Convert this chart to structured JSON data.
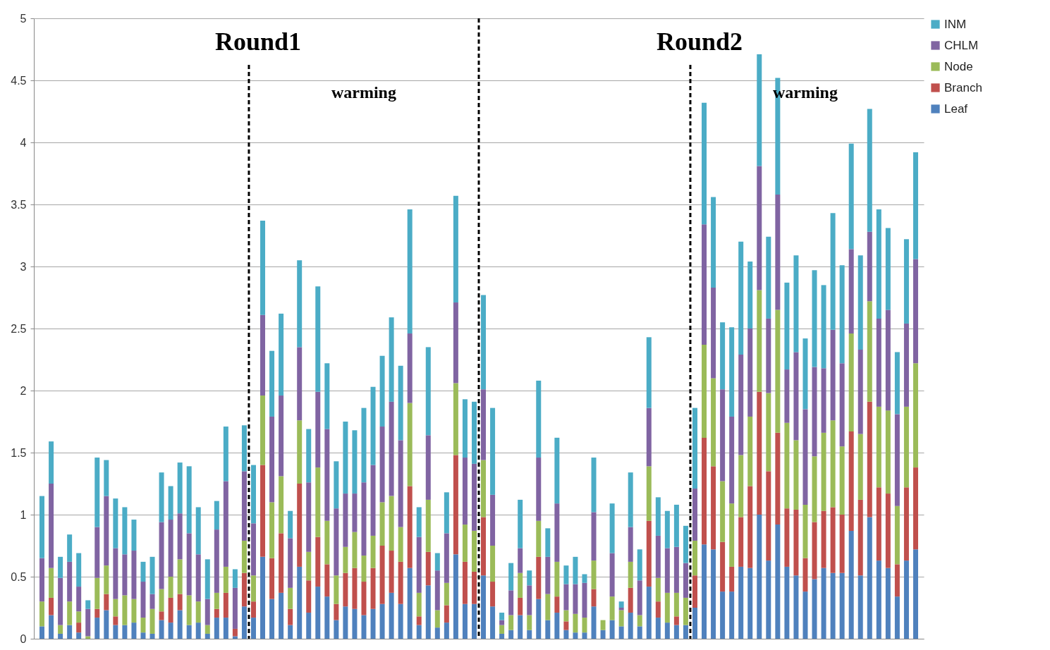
{
  "chart_data": {
    "type": "bar",
    "stacked": true,
    "grid": "y",
    "legend": "right",
    "categories": [
      null,
      null,
      null,
      null,
      null,
      null,
      null,
      null,
      null,
      null,
      null,
      null,
      null,
      null,
      null,
      null,
      null,
      null,
      null,
      null,
      null,
      null,
      null,
      null,
      null,
      null,
      null,
      null,
      null,
      null,
      null,
      null,
      null,
      null,
      null,
      null,
      null,
      null,
      null,
      null,
      null,
      null,
      null,
      null,
      null,
      null,
      null,
      null,
      null,
      null,
      null,
      null,
      null,
      null,
      null,
      null,
      null,
      null,
      null,
      null,
      null,
      null,
      null,
      null,
      null,
      null,
      null,
      null,
      null,
      null,
      null,
      null,
      null,
      null,
      null,
      null,
      null,
      null,
      null,
      null,
      null,
      null,
      null,
      null,
      null,
      null,
      null,
      null,
      null,
      null,
      null,
      null,
      null,
      null,
      null,
      null
    ],
    "ylim": [
      0,
      5
    ],
    "yticks": [
      0,
      0.5,
      1,
      1.5,
      2,
      2.5,
      3,
      3.5,
      4,
      4.5,
      5
    ],
    "series": [
      {
        "name": "Leaf",
        "color": "#4f81bd",
        "values": [
          0.1,
          0.19,
          0.04,
          0.11,
          0.05,
          0,
          0.17,
          0.23,
          0.11,
          0.11,
          0.13,
          0.05,
          0.04,
          0.15,
          0.13,
          0.23,
          0.11,
          0.13,
          0.04,
          0.17,
          0.17,
          0.02,
          0.26,
          0.17,
          0.66,
          0.32,
          0.37,
          0.11,
          0.58,
          0.21,
          0.42,
          0.34,
          0.15,
          0.26,
          0.24,
          0.19,
          0.24,
          0.28,
          0.37,
          0.28,
          0.57,
          0.11,
          0.43,
          0.09,
          0.13,
          0.68,
          0.28,
          0.28,
          0.51,
          0.26,
          0.04,
          0.07,
          0.19,
          0.07,
          0.32,
          0.15,
          0.21,
          0.07,
          0.05,
          0.05,
          0.26,
          0.07,
          0.15,
          0.1,
          0.21,
          0.1,
          0.42,
          0.17,
          0.13,
          0.11,
          0.11,
          0.25,
          0.76,
          0.72,
          0.38,
          0.38,
          0.58,
          0.57,
          1.0,
          0.63,
          0.92,
          0.58,
          0.51,
          0.38,
          0.48,
          0.57,
          0.53,
          0.53,
          0.87,
          0.51,
          0.98,
          0.63,
          0.57,
          0.34,
          0.63,
          0.72
        ]
      },
      {
        "name": "Branch",
        "color": "#c0504d",
        "values": [
          0,
          0.14,
          0,
          0,
          0.08,
          0,
          0.07,
          0.13,
          0.07,
          0,
          0,
          0,
          0,
          0.07,
          0.2,
          0.13,
          0,
          0,
          0,
          0.07,
          0.2,
          0.06,
          0.27,
          0.13,
          0.74,
          0.33,
          0.48,
          0.13,
          0.67,
          0.26,
          0.4,
          0.26,
          0.13,
          0.27,
          0.33,
          0.27,
          0.33,
          0.47,
          0.34,
          0.34,
          0.66,
          0.07,
          0.27,
          0,
          0.14,
          0.8,
          0.34,
          0.26,
          0.47,
          0.2,
          0,
          0,
          0.14,
          0,
          0.34,
          0,
          0.13,
          0.07,
          0,
          0,
          0.14,
          0,
          0,
          0,
          0.2,
          0,
          0.53,
          0.13,
          0,
          0.07,
          0,
          0.26,
          0.86,
          0.67,
          0.4,
          0.2,
          0.4,
          0.66,
          0.99,
          0.72,
          0.74,
          0.47,
          0.53,
          0.27,
          0.46,
          0.46,
          0.53,
          0.47,
          0.8,
          0.61,
          0.93,
          0.59,
          0.6,
          0.26,
          0.59,
          0.66
        ]
      },
      {
        "name": "Node",
        "color": "#9bbb59",
        "values": [
          0.2,
          0.24,
          0.07,
          0.19,
          0.09,
          0.02,
          0.25,
          0.23,
          0.14,
          0.24,
          0.19,
          0.12,
          0.2,
          0.18,
          0.17,
          0.28,
          0.24,
          0.17,
          0.07,
          0.13,
          0.21,
          0,
          0.26,
          0.21,
          0.56,
          0.45,
          0.46,
          0.17,
          0.51,
          0.23,
          0.56,
          0.35,
          0.23,
          0.21,
          0.29,
          0.21,
          0.26,
          0.35,
          0.44,
          0.28,
          0.67,
          0.19,
          0.42,
          0.14,
          0.18,
          0.58,
          0.3,
          0.33,
          0.46,
          0.29,
          0.07,
          0.12,
          0.2,
          0.12,
          0.29,
          0.21,
          0.28,
          0.09,
          0.15,
          0.12,
          0.23,
          0.08,
          0.19,
          0.13,
          0.21,
          0.09,
          0.44,
          0.19,
          0.24,
          0.19,
          0.22,
          0.28,
          0.75,
          0.71,
          0.49,
          0.51,
          0.5,
          0.56,
          0.82,
          0.63,
          0.99,
          0.69,
          0.56,
          0.43,
          0.53,
          0.63,
          0.7,
          0.55,
          0.79,
          0.53,
          0.81,
          0.65,
          0.67,
          0.47,
          0.65,
          0.84
        ]
      },
      {
        "name": "CHLM",
        "color": "#8064a2",
        "values": [
          0.35,
          0.68,
          0.38,
          0.32,
          0.2,
          0.22,
          0.41,
          0.56,
          0.41,
          0.33,
          0.39,
          0.29,
          0.12,
          0.54,
          0.46,
          0.37,
          0.5,
          0.38,
          0.21,
          0.51,
          0.69,
          0.33,
          0.56,
          0.42,
          0.65,
          0.69,
          0.65,
          0.4,
          0.59,
          0.56,
          0.61,
          0.74,
          0.54,
          0.43,
          0.31,
          0.59,
          0.57,
          0.61,
          0.76,
          0.7,
          0.56,
          0.45,
          0.52,
          0.32,
          0.4,
          0.65,
          0.54,
          0.54,
          0.57,
          0.41,
          0.04,
          0.2,
          0.2,
          0.24,
          0.51,
          0.3,
          0.47,
          0.21,
          0.24,
          0.28,
          0.39,
          0,
          0.35,
          0.02,
          0.28,
          0.28,
          0.47,
          0.34,
          0.36,
          0.37,
          0.28,
          0.42,
          0.97,
          0.73,
          0.74,
          0.7,
          0.81,
          0.71,
          1.0,
          0.6,
          0.93,
          0.43,
          0.71,
          0.77,
          0.72,
          0.52,
          0.73,
          0.67,
          0.68,
          0.68,
          0.56,
          0.71,
          0.81,
          0.74,
          0.67,
          0.84
        ]
      },
      {
        "name": "INM",
        "color": "#4bacc6",
        "values": [
          0.5,
          0.34,
          0.17,
          0.22,
          0.27,
          0.07,
          0.56,
          0.29,
          0.4,
          0.38,
          0.25,
          0.16,
          0.3,
          0.4,
          0.27,
          0.41,
          0.54,
          0.38,
          0.32,
          0.23,
          0.44,
          0.15,
          0.37,
          0.47,
          0.76,
          0.53,
          0.66,
          0.22,
          0.7,
          0.43,
          0.85,
          0.53,
          0.38,
          0.58,
          0.51,
          0.6,
          0.63,
          0.57,
          0.68,
          0.6,
          1.0,
          0.24,
          0.71,
          0.14,
          0.33,
          0.86,
          0.47,
          0.5,
          0.76,
          0.7,
          0.06,
          0.22,
          0.39,
          0.12,
          0.62,
          0.23,
          0.53,
          0.15,
          0.22,
          0.07,
          0.44,
          0,
          0.4,
          0.05,
          0.44,
          0.25,
          0.57,
          0.31,
          0.3,
          0.34,
          0.3,
          0.65,
          0.98,
          0.73,
          0.54,
          0.72,
          0.91,
          0.54,
          0.9,
          0.66,
          0.94,
          0.7,
          0.78,
          0.57,
          0.78,
          0.67,
          0.94,
          0.79,
          0.85,
          0.76,
          0.99,
          0.88,
          0.66,
          0.5,
          0.68,
          0.86
        ]
      }
    ],
    "annotations": [
      "Round1",
      "warming",
      "Round2",
      "warming"
    ]
  }
}
